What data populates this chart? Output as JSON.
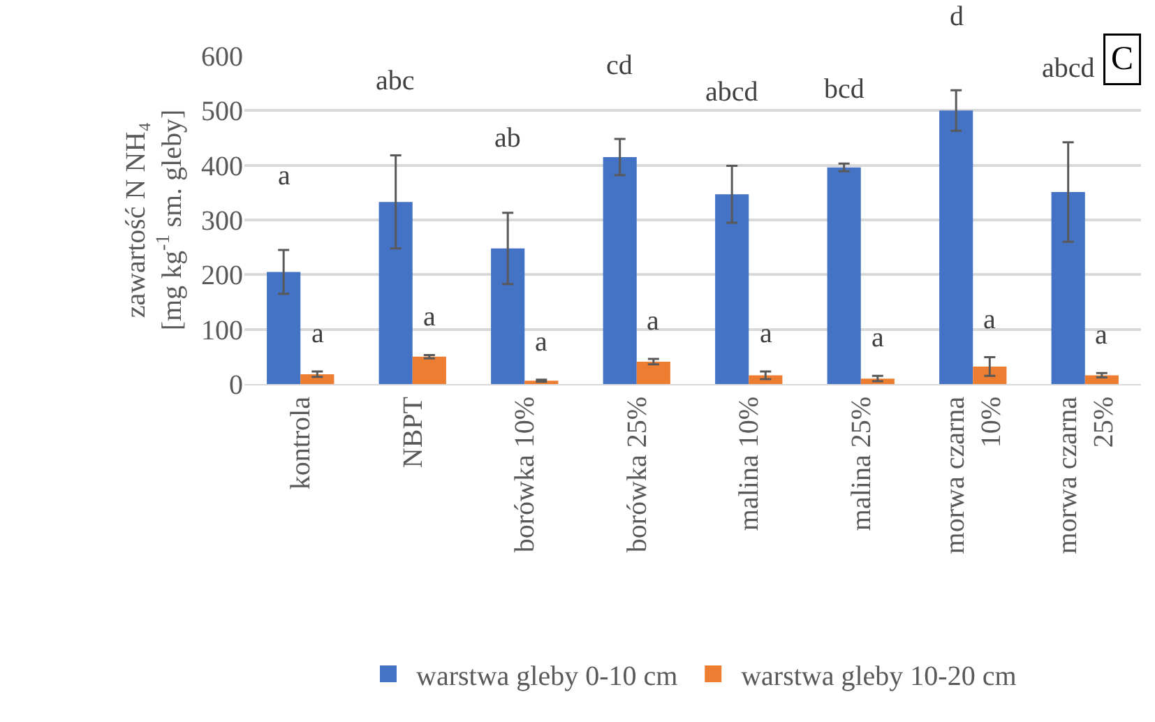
{
  "chart_data": {
    "type": "bar",
    "ylabel": "zawartość N NH₄ [mg kg$^{-1}$ sm. gleby]",
    "categories": [
      "kontrola",
      "NBPT",
      "borówka 10%",
      "borówka 25%",
      "malina 10%",
      "malina 25%",
      "morwa czarna 10%",
      "morwa czarna 25%"
    ],
    "series": [
      {
        "name": "warstwa gleby 0-10 cm",
        "color": "#4472c4",
        "values": [
          205,
          333,
          248,
          415,
          347,
          396,
          500,
          351
        ],
        "errors": [
          40,
          85,
          65,
          33,
          52,
          7,
          37,
          91
        ]
      },
      {
        "name": "warstwa gleby 10-20 cm",
        "color": "#ed7d31",
        "values": [
          18,
          50,
          6,
          41,
          16,
          10,
          32,
          16
        ],
        "errors": [
          5,
          3,
          2,
          5,
          7,
          5,
          17,
          4
        ]
      }
    ],
    "ylim": [
      0,
      600
    ],
    "yticks": [
      0,
      100,
      200,
      300,
      400,
      500,
      600
    ],
    "grid": "y",
    "legend": "bottom",
    "annotations": [
      "a",
      "abc",
      "ab",
      "cd",
      "abcd",
      "bcd",
      "d",
      "abcd",
      "a",
      "a",
      "a",
      "a",
      "a",
      "a",
      "a",
      "a",
      "C"
    ]
  }
}
